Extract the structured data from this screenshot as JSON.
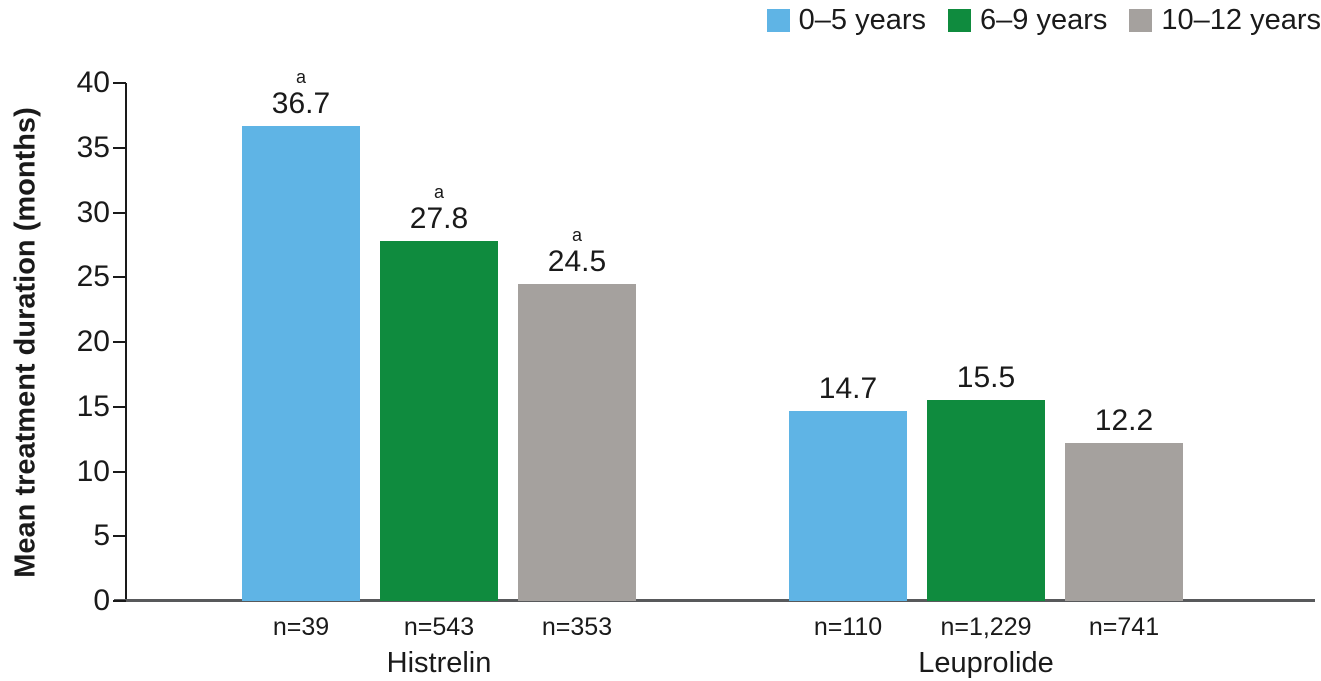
{
  "colors": {
    "series_blue": "#5fb4e5",
    "series_green": "#0f8b3e",
    "series_gray": "#a5a19e",
    "axis": "#1a1a1a",
    "baseline": "#58595b"
  },
  "legend": {
    "items": [
      {
        "label": "0–5 years",
        "color": "#5fb4e5"
      },
      {
        "label": "6–9 years",
        "color": "#0f8b3e"
      },
      {
        "label": "10–12 years",
        "color": "#a5a19e"
      }
    ]
  },
  "chart_data": {
    "type": "bar",
    "title": "",
    "xlabel": "",
    "ylabel": "Mean treatment duration (months)",
    "ylim": [
      0,
      40
    ],
    "yticks": [
      0,
      5,
      10,
      15,
      20,
      25,
      30,
      35,
      40
    ],
    "grid": false,
    "legend_position": "top-right",
    "categories": [
      "Histrelin",
      "Leuprolide"
    ],
    "series": [
      {
        "name": "0–5 years",
        "color": "#5fb4e5",
        "values": [
          36.7,
          14.7
        ]
      },
      {
        "name": "6–9 years",
        "color": "#0f8b3e",
        "values": [
          27.8,
          15.5
        ]
      },
      {
        "name": "10–12 years",
        "color": "#a5a19e",
        "values": [
          24.5,
          12.2
        ]
      }
    ],
    "groups": [
      {
        "label": "Histrelin",
        "bars": [
          {
            "series": "0–5 years",
            "value": 36.7,
            "value_label": "36.7",
            "superscript": "a",
            "n_label": "n=39"
          },
          {
            "series": "6–9 years",
            "value": 27.8,
            "value_label": "27.8",
            "superscript": "a",
            "n_label": "n=543"
          },
          {
            "series": "10–12 years",
            "value": 24.5,
            "value_label": "24.5",
            "superscript": "a",
            "n_label": "n=353"
          }
        ]
      },
      {
        "label": "Leuprolide",
        "bars": [
          {
            "series": "0–5 years",
            "value": 14.7,
            "value_label": "14.7",
            "superscript": "",
            "n_label": "n=110"
          },
          {
            "series": "6–9 years",
            "value": 15.5,
            "value_label": "15.5",
            "superscript": "",
            "n_label": "n=1,229"
          },
          {
            "series": "10–12 years",
            "value": 12.2,
            "value_label": "12.2",
            "superscript": "",
            "n_label": "n=741"
          }
        ]
      }
    ]
  }
}
